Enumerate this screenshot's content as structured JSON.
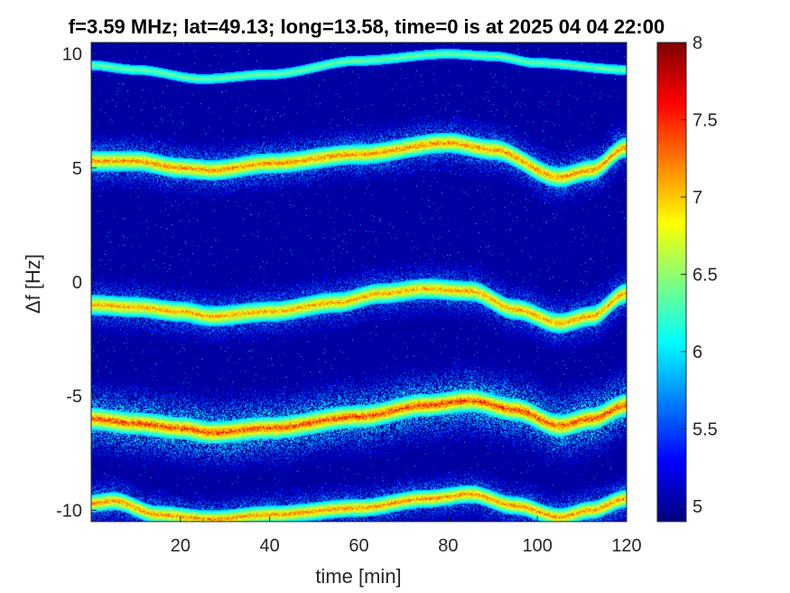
{
  "chart_data": {
    "type": "heatmap",
    "title": "f=3.59 MHz;  lat=49.13; long=13.58, time=0 is at 2025 04 04 22:00",
    "xlabel": "time [min]",
    "ylabel": "Δf [Hz]",
    "xlim": [
      0,
      120
    ],
    "ylim": [
      -10.5,
      10.5
    ],
    "x_ticks": [
      20,
      40,
      60,
      80,
      100,
      120
    ],
    "y_ticks": [
      -10,
      -5,
      0,
      5,
      10
    ],
    "colorbar": {
      "range": [
        4.9,
        8
      ],
      "ticks": [
        5,
        5.5,
        6,
        6.5,
        7,
        7.5,
        8
      ],
      "colormap": "jet"
    },
    "background_value": 5.0,
    "traces": [
      {
        "name": "",
        "spread": 0.6,
        "intensity": 6.6,
        "width": 0.22,
        "points": [
          [
            0,
            9.5
          ],
          [
            10,
            9.3
          ],
          [
            25,
            8.9
          ],
          [
            40,
            9.1
          ],
          [
            60,
            9.7
          ],
          [
            80,
            10.0
          ],
          [
            90,
            9.9
          ],
          [
            100,
            9.6
          ],
          [
            120,
            9.3
          ]
        ]
      },
      {
        "name": "",
        "spread": 1.6,
        "intensity": 7.6,
        "width": 0.45,
        "points": [
          [
            0,
            5.3
          ],
          [
            10,
            5.3
          ],
          [
            20,
            5.0
          ],
          [
            27,
            4.9
          ],
          [
            40,
            5.2
          ],
          [
            60,
            5.6
          ],
          [
            80,
            6.1
          ],
          [
            90,
            5.8
          ],
          [
            105,
            4.6
          ],
          [
            112,
            4.9
          ],
          [
            120,
            5.9
          ]
        ]
      },
      {
        "name": "",
        "spread": 1.6,
        "intensity": 7.5,
        "width": 0.45,
        "points": [
          [
            0,
            -1.0
          ],
          [
            10,
            -1.1
          ],
          [
            20,
            -1.3
          ],
          [
            27,
            -1.5
          ],
          [
            40,
            -1.3
          ],
          [
            55,
            -0.9
          ],
          [
            65,
            -0.5
          ],
          [
            75,
            -0.3
          ],
          [
            85,
            -0.4
          ],
          [
            95,
            -1.2
          ],
          [
            105,
            -1.8
          ],
          [
            112,
            -1.5
          ],
          [
            120,
            -0.5
          ]
        ]
      },
      {
        "name": "",
        "spread": 2.2,
        "intensity": 7.9,
        "width": 0.5,
        "points": [
          [
            0,
            -6.0
          ],
          [
            10,
            -6.2
          ],
          [
            20,
            -6.4
          ],
          [
            27,
            -6.6
          ],
          [
            40,
            -6.4
          ],
          [
            60,
            -5.9
          ],
          [
            75,
            -5.4
          ],
          [
            85,
            -5.2
          ],
          [
            95,
            -5.6
          ],
          [
            105,
            -6.3
          ],
          [
            112,
            -6.0
          ],
          [
            120,
            -5.4
          ]
        ]
      },
      {
        "name": "",
        "spread": 1.4,
        "intensity": 7.6,
        "width": 0.4,
        "points": [
          [
            0,
            -9.7
          ],
          [
            5,
            -9.6
          ],
          [
            15,
            -10.2
          ],
          [
            27,
            -10.4
          ],
          [
            40,
            -10.2
          ],
          [
            60,
            -9.9
          ],
          [
            75,
            -9.5
          ],
          [
            85,
            -9.3
          ],
          [
            95,
            -9.8
          ],
          [
            105,
            -10.3
          ],
          [
            112,
            -10.0
          ],
          [
            120,
            -9.5
          ]
        ]
      }
    ]
  },
  "colors": {
    "background": "#ffffff",
    "axis": "#262626"
  }
}
